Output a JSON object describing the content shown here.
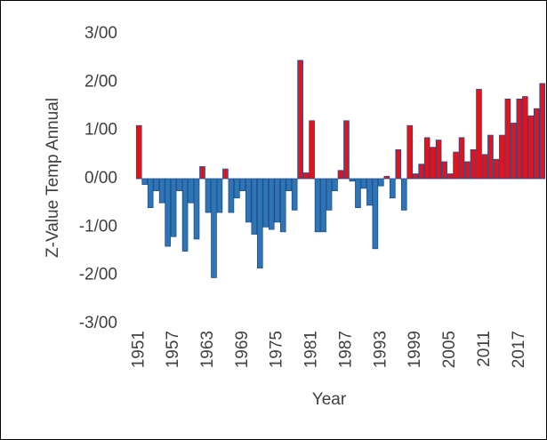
{
  "chart_data": {
    "type": "bar",
    "xlabel": "Year",
    "ylabel": "Z-Value Temp Annual",
    "categories": [
      "1951",
      null,
      null,
      null,
      null,
      null,
      "1957",
      null,
      null,
      null,
      null,
      null,
      "1963",
      null,
      null,
      null,
      null,
      null,
      "1969",
      null,
      null,
      null,
      null,
      null,
      "1975",
      null,
      null,
      null,
      null,
      null,
      "1981",
      null,
      null,
      null,
      null,
      null,
      "1987",
      null,
      null,
      null,
      null,
      null,
      "1993",
      null,
      null,
      null,
      null,
      null,
      "1999",
      null,
      null,
      null,
      null,
      null,
      "2005",
      null,
      null,
      null,
      null,
      null,
      "2011",
      null,
      null,
      null,
      null,
      null,
      "2017",
      null,
      null,
      null,
      null
    ],
    "values": [
      1.1,
      -0.12,
      -0.6,
      -0.25,
      -0.5,
      -1.4,
      -1.2,
      -0.25,
      -1.5,
      -0.5,
      -1.25,
      0.25,
      -0.7,
      -2.05,
      -0.7,
      0.2,
      -0.7,
      -0.4,
      -0.25,
      -0.9,
      -1.15,
      -1.85,
      -1.0,
      -1.05,
      -0.9,
      -1.1,
      -0.25,
      -0.65,
      2.45,
      0.12,
      1.2,
      -1.1,
      -1.1,
      -0.65,
      -0.25,
      0.17,
      1.2,
      -0.05,
      -0.6,
      -0.2,
      -0.55,
      -1.45,
      -0.15,
      0.05,
      -0.4,
      0.6,
      -0.65,
      1.1,
      0.1,
      0.3,
      0.85,
      0.65,
      0.8,
      0.35,
      0.1,
      0.55,
      0.85,
      0.35,
      0.6,
      1.85,
      0.5,
      0.9,
      0.4,
      0.9,
      1.65,
      1.15,
      1.65,
      1.7,
      1.3,
      1.45,
      1.97
    ],
    "positive_color": "#e0141e",
    "negative_color": "#2e75b6",
    "edge_color": "#1f4e8c",
    "ylim": [
      -3,
      3
    ],
    "yticks": [
      {
        "value": -3,
        "label": "-3/00"
      },
      {
        "value": -2,
        "label": "-2/00"
      },
      {
        "value": -1,
        "label": "-1/00"
      },
      {
        "value": 0,
        "label": "0/00"
      },
      {
        "value": 1,
        "label": "1/00"
      },
      {
        "value": 2,
        "label": "2/00"
      },
      {
        "value": 3,
        "label": "3/00"
      }
    ],
    "grid": false
  }
}
